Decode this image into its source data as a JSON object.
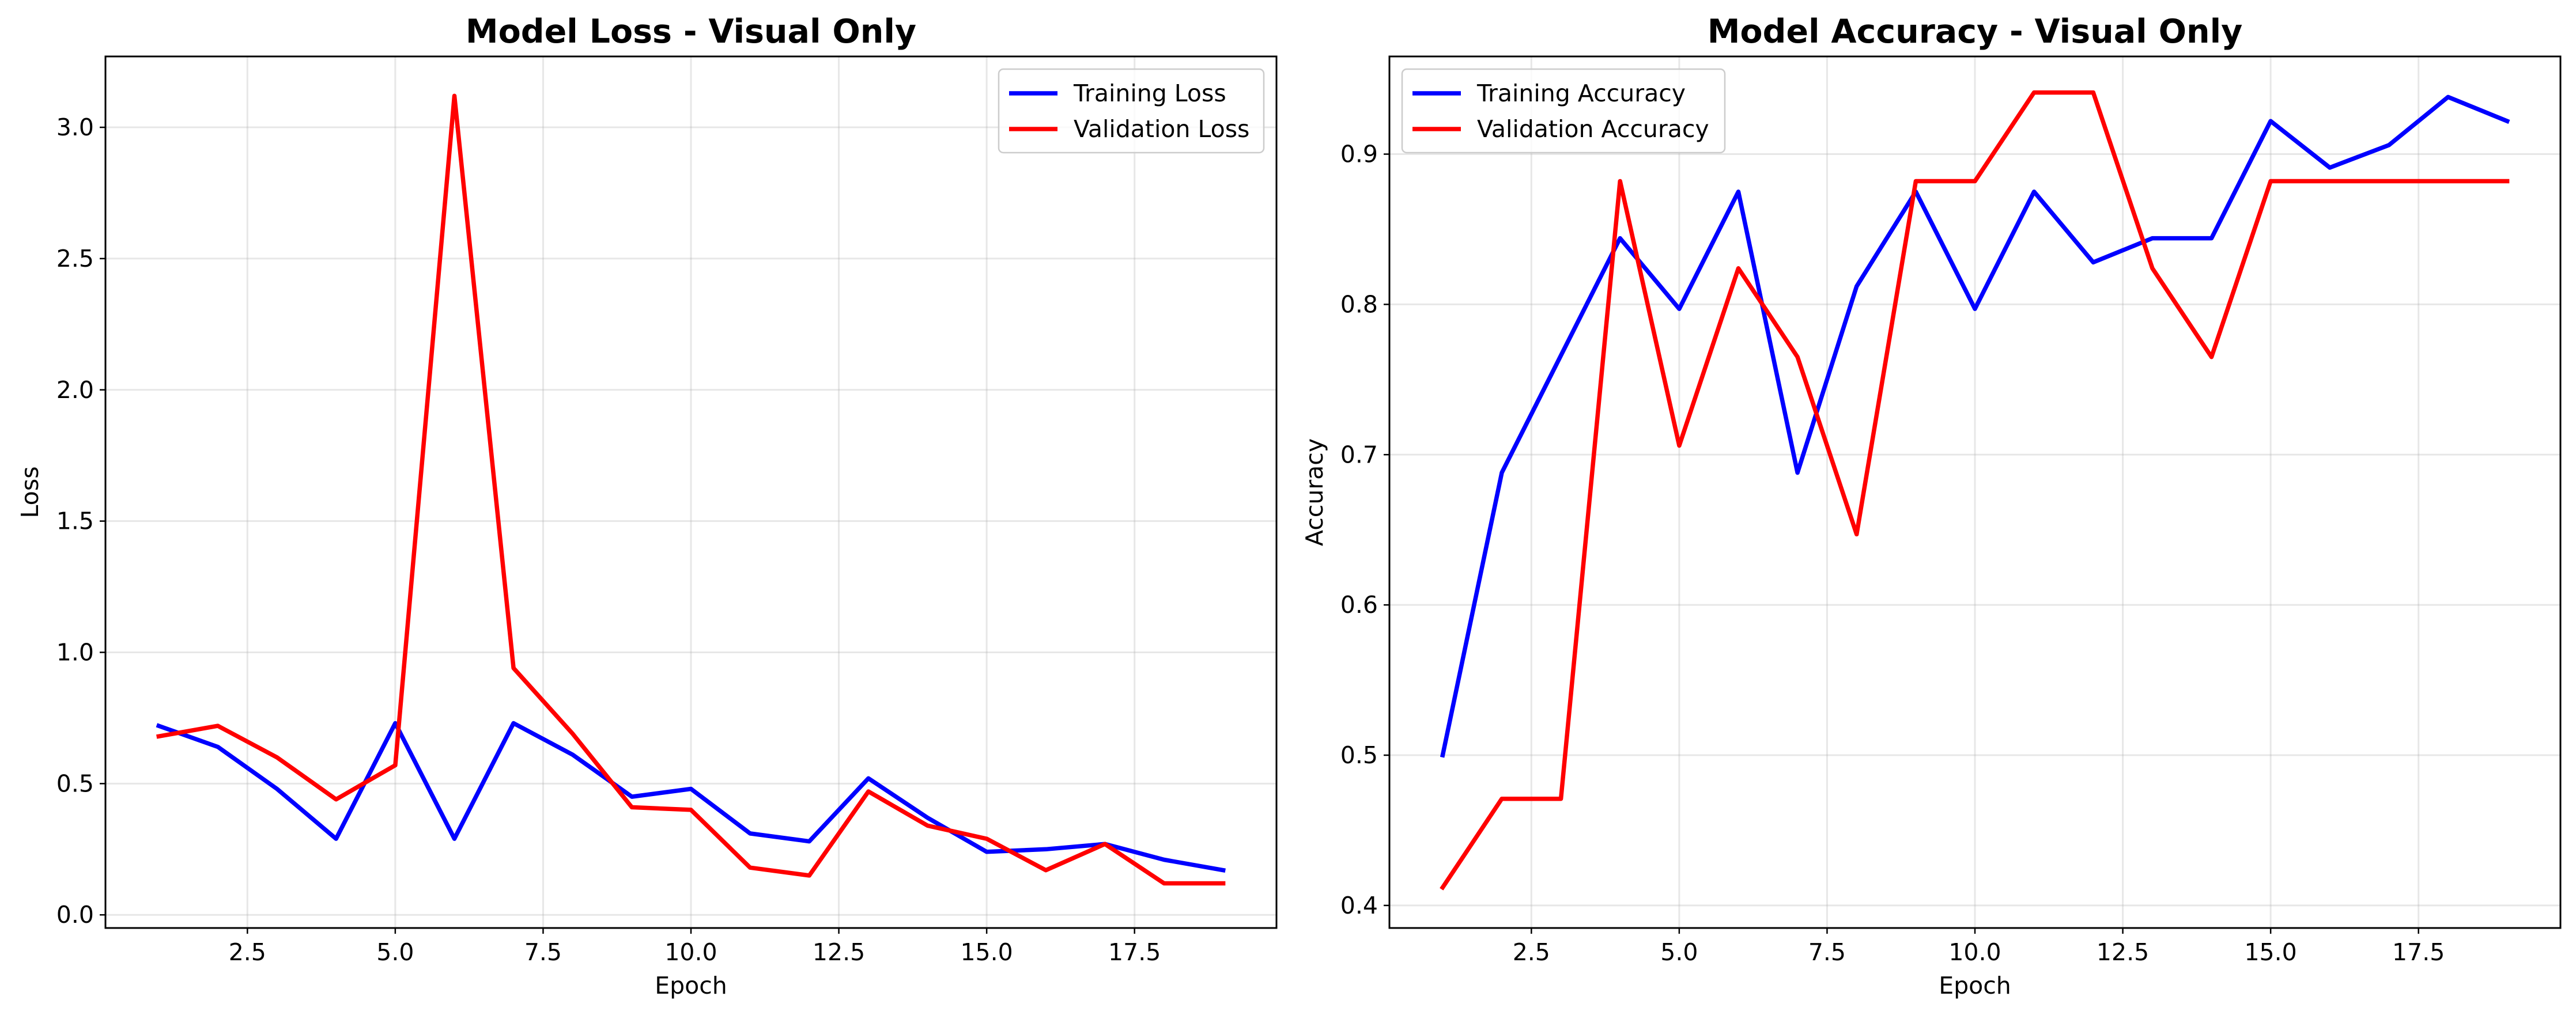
{
  "chart_data": [
    {
      "type": "line",
      "title": "Model Loss - Visual Only",
      "xlabel": "Epoch",
      "ylabel": "Loss",
      "xlim": [
        0.1,
        19.9
      ],
      "ylim": [
        -0.05,
        3.27
      ],
      "xticks": [
        "2.5",
        "5.0",
        "7.5",
        "10.0",
        "12.5",
        "15.0",
        "17.5"
      ],
      "yticks": [
        "0.0",
        "0.5",
        "1.0",
        "1.5",
        "2.0",
        "2.5",
        "3.0"
      ],
      "grid": true,
      "legend_position": "upper right",
      "x": [
        1,
        2,
        3,
        4,
        5,
        6,
        7,
        8,
        9,
        10,
        11,
        12,
        13,
        14,
        15,
        16,
        17,
        18,
        19
      ],
      "series": [
        {
          "name": "Training Loss",
          "color": "#0000ff",
          "values": [
            0.72,
            0.64,
            0.48,
            0.29,
            0.73,
            0.29,
            0.73,
            0.61,
            0.45,
            0.48,
            0.31,
            0.28,
            0.52,
            0.37,
            0.24,
            0.25,
            0.27,
            0.21,
            0.17
          ]
        },
        {
          "name": "Validation Loss",
          "color": "#ff0000",
          "values": [
            0.68,
            0.72,
            0.6,
            0.44,
            0.57,
            3.12,
            0.94,
            0.69,
            0.41,
            0.4,
            0.18,
            0.15,
            0.47,
            0.34,
            0.29,
            0.17,
            0.27,
            0.12,
            0.12
          ]
        }
      ]
    },
    {
      "type": "line",
      "title": "Model Accuracy - Visual Only",
      "xlabel": "Epoch",
      "ylabel": "Accuracy",
      "xlim": [
        0.1,
        19.9
      ],
      "ylim": [
        0.385,
        0.965
      ],
      "xticks": [
        "2.5",
        "5.0",
        "7.5",
        "10.0",
        "12.5",
        "15.0",
        "17.5"
      ],
      "yticks": [
        "0.4",
        "0.5",
        "0.6",
        "0.7",
        "0.8",
        "0.9"
      ],
      "grid": true,
      "legend_position": "upper left",
      "x": [
        1,
        2,
        3,
        4,
        5,
        6,
        7,
        8,
        9,
        10,
        11,
        12,
        13,
        14,
        15,
        16,
        17,
        18,
        19
      ],
      "series": [
        {
          "name": "Training Accuracy",
          "color": "#0000ff",
          "values": [
            0.5,
            0.688,
            0.766,
            0.844,
            0.797,
            0.875,
            0.688,
            0.812,
            0.875,
            0.797,
            0.875,
            0.828,
            0.844,
            0.844,
            0.922,
            0.891,
            0.906,
            0.938,
            0.922
          ]
        },
        {
          "name": "Validation Accuracy",
          "color": "#ff0000",
          "values": [
            0.412,
            0.471,
            0.471,
            0.882,
            0.706,
            0.824,
            0.765,
            0.647,
            0.882,
            0.882,
            0.941,
            0.941,
            0.824,
            0.765,
            0.882,
            0.882,
            0.882,
            0.882,
            0.882
          ]
        }
      ]
    }
  ]
}
